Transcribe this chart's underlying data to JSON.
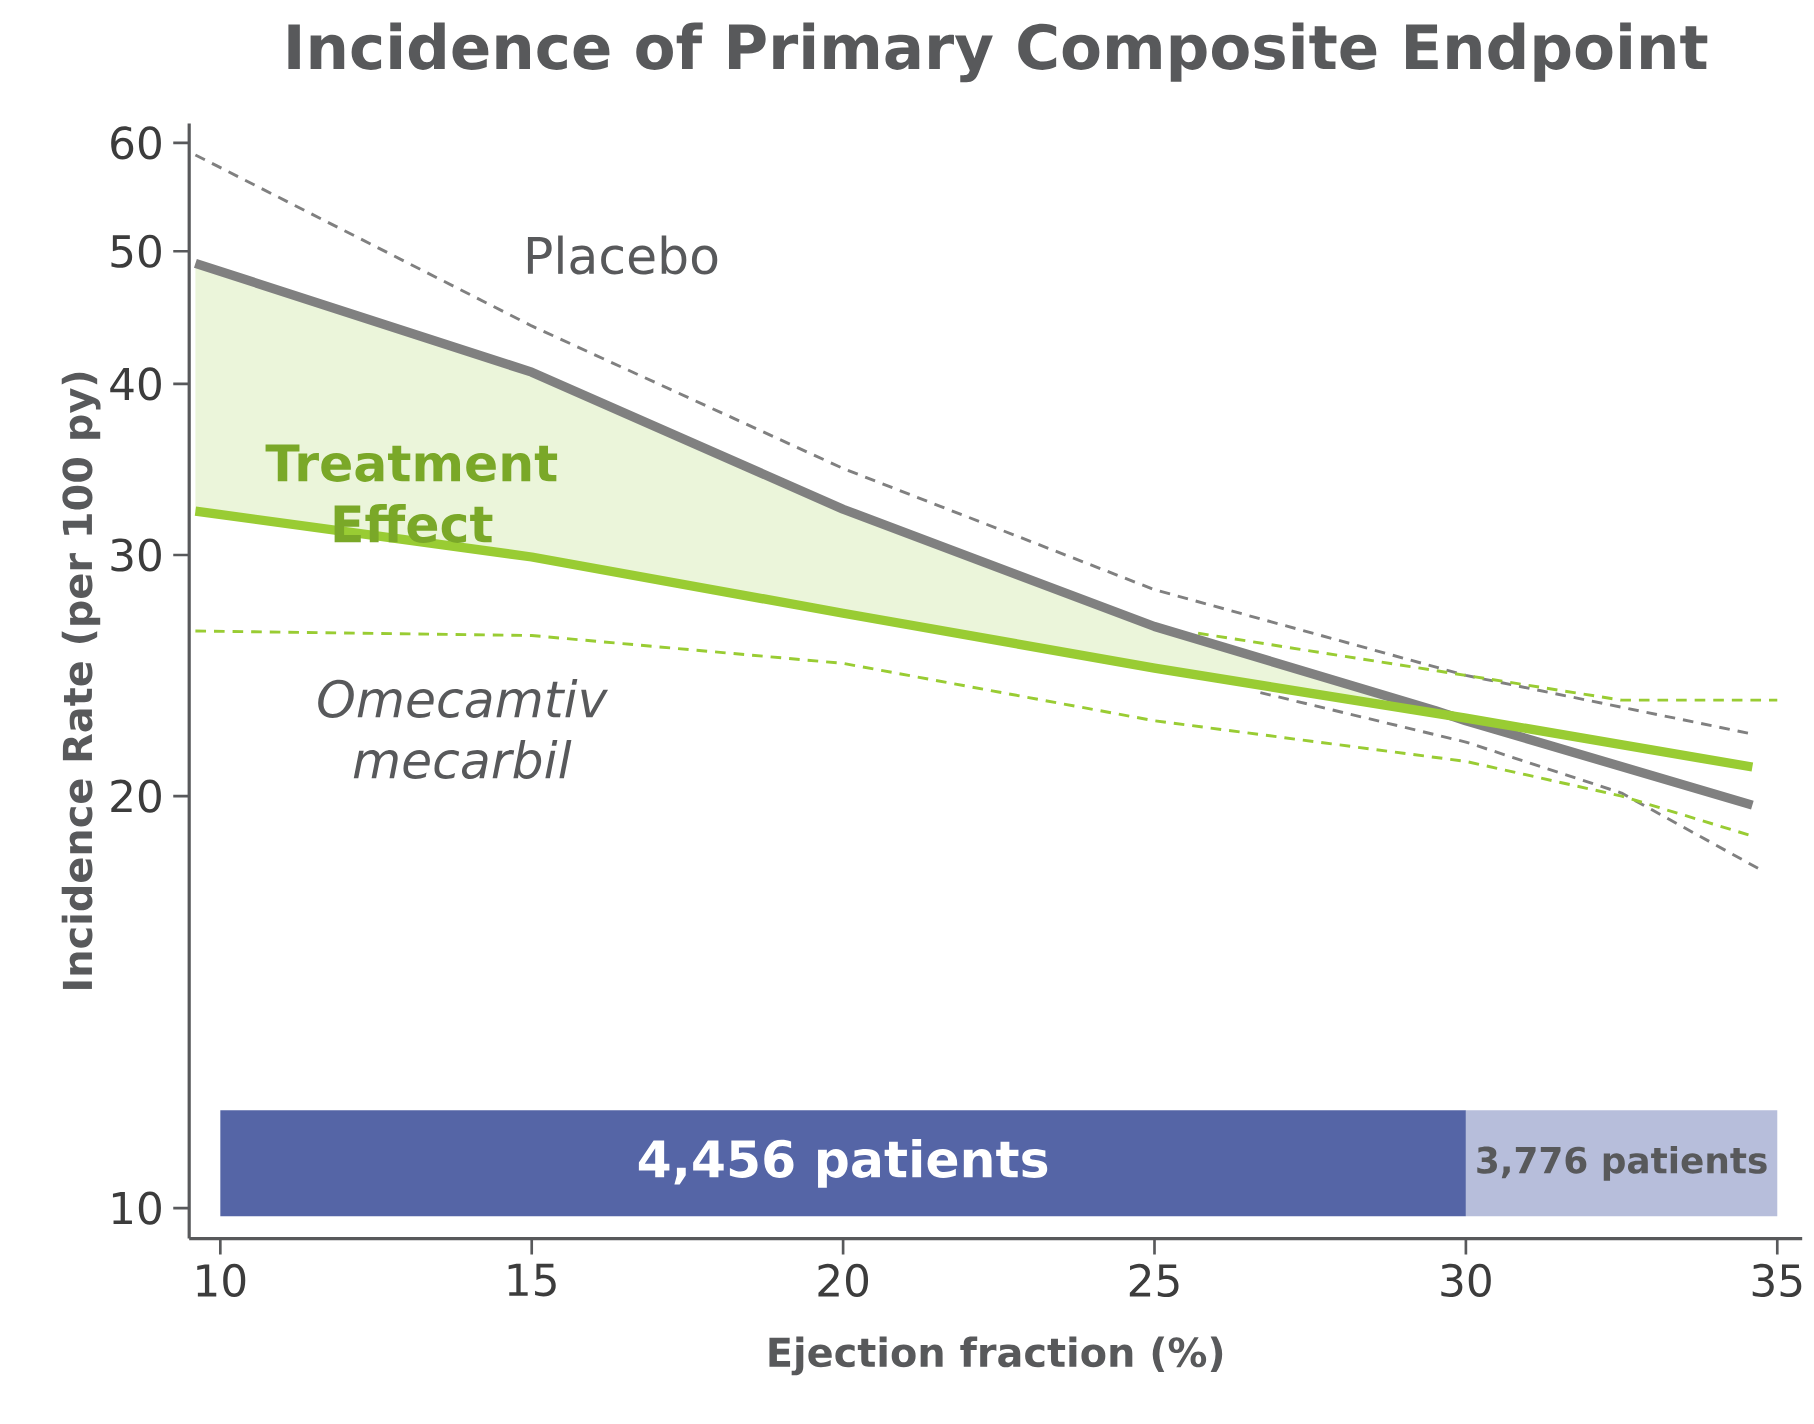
{
  "chart_data": {
    "type": "line",
    "title": "Incidence of Primary Composite Endpoint",
    "xlabel": "Ejection fraction (%)",
    "ylabel": "Incidence Rate (per 100 py)",
    "log": "y",
    "xlim": [
      9.5,
      35.4
    ],
    "ylim": [
      9.5,
      62
    ],
    "xticks": [
      10,
      15,
      20,
      25,
      30,
      35
    ],
    "yticks": [
      10,
      20,
      30,
      40,
      50,
      60
    ],
    "series": [
      {
        "name": "Placebo",
        "color": "#808080",
        "x": [
          9.6,
          15,
          20,
          25,
          29.5,
          30,
          34.6
        ],
        "values": [
          49,
          40.8,
          32.4,
          26.6,
          23.1,
          22.7,
          19.7
        ],
        "lower": [
          32.3,
          29.9,
          27.2,
          24.8,
          23.1,
          null,
          null
        ],
        "upper": [
          49,
          40.8,
          32.4,
          26.6,
          23.1,
          null,
          null
        ]
      },
      {
        "name": "Omecamtiv mecarbil",
        "color": "#99cc33",
        "x": [
          9.6,
          15,
          20,
          25,
          30,
          34.6
        ],
        "values": [
          32.3,
          29.9,
          27.2,
          24.8,
          22.8,
          21.0
        ]
      },
      {
        "color": "#808080",
        "line_style": "dashed",
        "x": [
          9.6,
          15,
          20,
          25,
          30,
          34.6
        ],
        "values": [
          58.8,
          44.1,
          34.7,
          28.3,
          24.5,
          22.2
        ]
      },
      {
        "color": "#808080",
        "line_style": "dashed",
        "x": [
          26.7,
          30,
          32.5,
          34.8
        ],
        "values": [
          23.8,
          21.9,
          20.1,
          17.6
        ]
      },
      {
        "color": "#99cc33",
        "line_style": "dashed",
        "x": [
          25.7,
          30,
          32.5,
          35
        ],
        "values": [
          26.3,
          24.5,
          23.5,
          23.5
        ]
      },
      {
        "color": "#99cc33",
        "line_style": "dashed",
        "x": [
          9.6,
          15,
          20,
          25,
          30,
          32.5,
          34.6
        ],
        "values": [
          26.4,
          26.2,
          25.0,
          22.7,
          21.2,
          20.0,
          18.7
        ]
      }
    ],
    "annotations": [
      "Treatment Effect"
    ],
    "bands": [
      {
        "axis": "x",
        "from": 10,
        "to": 30,
        "label": "4,456 patients",
        "color": "#5565a6"
      },
      {
        "axis": "x",
        "from": 30,
        "to": 35,
        "label": "3,776 patients",
        "color": "#b7bedb"
      }
    ]
  }
}
